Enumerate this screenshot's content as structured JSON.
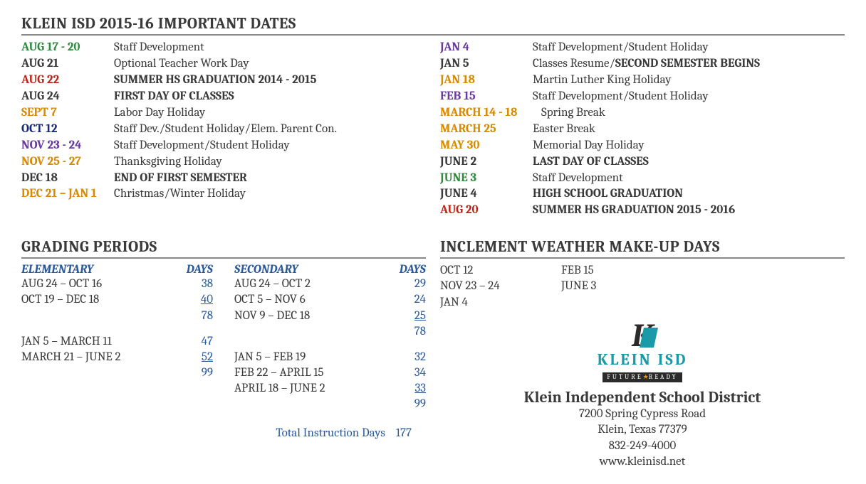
{
  "title_dates": "KLEIN ISD 2015-16 IMPORTANT DATES",
  "title_grading": "GRADING PERIODS",
  "title_weather": "INCLEMENT WEATHER MAKE-UP DAYS",
  "colors": {
    "green": "#2e8b3d",
    "black": "#3a3a3a",
    "red": "#c02418",
    "orange": "#d88a00",
    "navy": "#1a2a7a",
    "purple": "#6a3aa0",
    "blue_link": "#2a5a9a"
  },
  "dates_left": [
    {
      "date": "AUG 17 - 20",
      "color": "green",
      "desc": "Staff Development",
      "bold": false
    },
    {
      "date": "AUG 21",
      "color": "black",
      "desc": "Optional Teacher Work Day",
      "bold": false
    },
    {
      "date": "AUG 22",
      "color": "red",
      "desc": "SUMMER HS GRADUATION 2014 - 2015",
      "bold": true
    },
    {
      "date": "AUG 24",
      "color": "black",
      "desc": "FIRST DAY OF CLASSES",
      "bold": true
    },
    {
      "date": "SEPT 7",
      "color": "orange",
      "desc": "Labor Day Holiday",
      "bold": false
    },
    {
      "date": "OCT 12",
      "color": "navy",
      "desc": "Staff Dev./Student Holiday/Elem. Parent Con.",
      "bold": false
    },
    {
      "date": "NOV 23 - 24",
      "color": "purple",
      "desc": "Staff Development/Student Holiday",
      "bold": false
    },
    {
      "date": "NOV 25 - 27",
      "color": "orange",
      "desc": "Thanksgiving Holiday",
      "bold": false
    },
    {
      "date": "DEC 18",
      "color": "black",
      "desc": "END OF FIRST SEMESTER",
      "bold": true
    },
    {
      "date": "DEC 21 – JAN 1",
      "color": "orange",
      "desc": "Christmas/Winter Holiday",
      "bold": false
    }
  ],
  "dates_right": [
    {
      "date": "JAN 4",
      "color": "purple",
      "desc": "Staff Development/Student Holiday",
      "bold": false
    },
    {
      "date": "JAN 5",
      "color": "black",
      "desc_prefix": "Classes Resume/",
      "desc_bold": "SECOND SEMESTER BEGINS"
    },
    {
      "date": "JAN 18",
      "color": "orange",
      "desc": "Martin Luther King Holiday",
      "bold": false
    },
    {
      "date": "FEB 15",
      "color": "purple",
      "desc": "Staff Development/Student Holiday",
      "bold": false
    },
    {
      "date": "MARCH 14 - 18",
      "color": "orange",
      "desc": "Spring Break",
      "bold": false,
      "wide": true
    },
    {
      "date": "MARCH 25",
      "color": "orange",
      "desc": "Easter Break",
      "bold": false
    },
    {
      "date": "MAY 30",
      "color": "orange",
      "desc": "Memorial Day Holiday",
      "bold": false
    },
    {
      "date": "JUNE 2",
      "color": "black",
      "desc": "LAST DAY OF CLASSES",
      "bold": true
    },
    {
      "date": "JUNE 3",
      "color": "green",
      "desc": "Staff Development",
      "bold": false
    },
    {
      "date": "JUNE 4",
      "color": "black",
      "desc": "HIGH SCHOOL GRADUATION",
      "bold": true
    },
    {
      "date": "AUG 20",
      "color": "red",
      "desc": "SUMMER HS GRADUATION 2015 - 2016",
      "bold": true
    }
  ],
  "grading": {
    "elem_label": "ELEMENTARY",
    "sec_label": "SECONDARY",
    "days_label": "DAYS",
    "elem_rows_1": [
      {
        "range": "AUG 24 – OCT 16",
        "days": "38",
        "underline": false
      },
      {
        "range": "OCT 19 – DEC 18",
        "days": "40",
        "underline": true
      },
      {
        "range": "",
        "days": "78",
        "underline": false
      }
    ],
    "elem_rows_2": [
      {
        "range": "JAN 5 – MARCH 11",
        "days": "47",
        "underline": false
      },
      {
        "range": "MARCH 21 – JUNE 2",
        "days": "52",
        "underline": true
      },
      {
        "range": "",
        "days": "99",
        "underline": false
      }
    ],
    "sec_rows_1": [
      {
        "range": "AUG 24 – OCT 2",
        "days": "29",
        "underline": false
      },
      {
        "range": "OCT 5 – NOV 6",
        "days": "24",
        "underline": false
      },
      {
        "range": "NOV 9 – DEC 18",
        "days": "25",
        "underline": true
      },
      {
        "range": "",
        "days": "78",
        "underline": false
      }
    ],
    "sec_rows_2": [
      {
        "range": "JAN 5 – FEB 19",
        "days": "32",
        "underline": false
      },
      {
        "range": "FEB 22 – APRIL 15",
        "days": "34",
        "underline": false
      },
      {
        "range": "APRIL 18 – JUNE 2",
        "days": "33",
        "underline": true
      },
      {
        "range": "",
        "days": "99",
        "underline": false
      }
    ],
    "total_label": "Total Instruction Days",
    "total_value": "177"
  },
  "weather": {
    "col1": [
      "OCT 12",
      "NOV 23 – 24",
      "JAN 4"
    ],
    "col2": [
      "FEB 15",
      "JUNE 3"
    ]
  },
  "district": {
    "logo_text": "KLEIN ISD",
    "logo_tag_left": "FUTURE",
    "logo_tag_right": "READY",
    "name": "Klein Independent School District",
    "addr1": "7200 Spring Cypress Road",
    "addr2": "Klein, Texas 77379",
    "phone": "832-249-4000",
    "web": "www.kleinisd.net"
  }
}
